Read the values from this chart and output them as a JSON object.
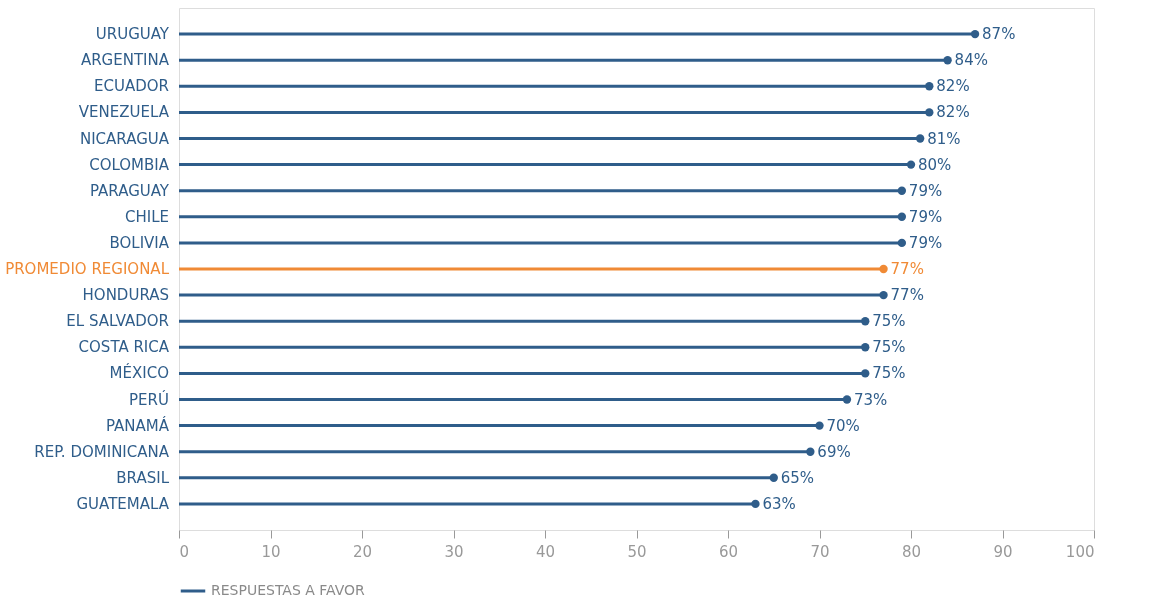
{
  "chart_data": {
    "type": "lollipop",
    "orientation": "horizontal",
    "categories": [
      "URUGUAY",
      "ARGENTINA",
      "ECUADOR",
      "VENEZUELA",
      "NICARAGUA",
      "COLOMBIA",
      "PARAGUAY",
      "CHILE",
      "BOLIVIA",
      "PROMEDIO REGIONAL",
      "HONDURAS",
      "EL SALVADOR",
      "COSTA RICA",
      "MÉXICO",
      "PERÚ",
      "PANAMÁ",
      "REP. DOMINICANA",
      "BRASIL",
      "GUATEMALA"
    ],
    "series": [
      {
        "name": "RESPUESTAS A FAVOR",
        "color": "#2f5d8a",
        "colors": [
          "#2f5d8a",
          "#2f5d8a",
          "#2f5d8a",
          "#2f5d8a",
          "#2f5d8a",
          "#2f5d8a",
          "#2f5d8a",
          "#2f5d8a",
          "#2f5d8a",
          "#f08a35",
          "#2f5d8a",
          "#2f5d8a",
          "#2f5d8a",
          "#2f5d8a",
          "#2f5d8a",
          "#2f5d8a",
          "#2f5d8a",
          "#2f5d8a",
          "#2f5d8a"
        ],
        "values": [
          87,
          84,
          82,
          82,
          81,
          80,
          79,
          79,
          79,
          77,
          77,
          75,
          75,
          75,
          73,
          70,
          69,
          65,
          63
        ],
        "value_labels": [
          "87%",
          "84%",
          "82%",
          "82%",
          "81%",
          "80%",
          "79%",
          "79%",
          "79%",
          "77%",
          "77%",
          "75%",
          "75%",
          "75%",
          "73%",
          "70%",
          "69%",
          "65%",
          "63%"
        ]
      }
    ],
    "xlim": [
      0,
      100
    ],
    "xticks": [
      0,
      10,
      20,
      30,
      40,
      50,
      60,
      70,
      80,
      90,
      100
    ],
    "grid": false,
    "legend": "bottom left",
    "marker": "circle"
  }
}
